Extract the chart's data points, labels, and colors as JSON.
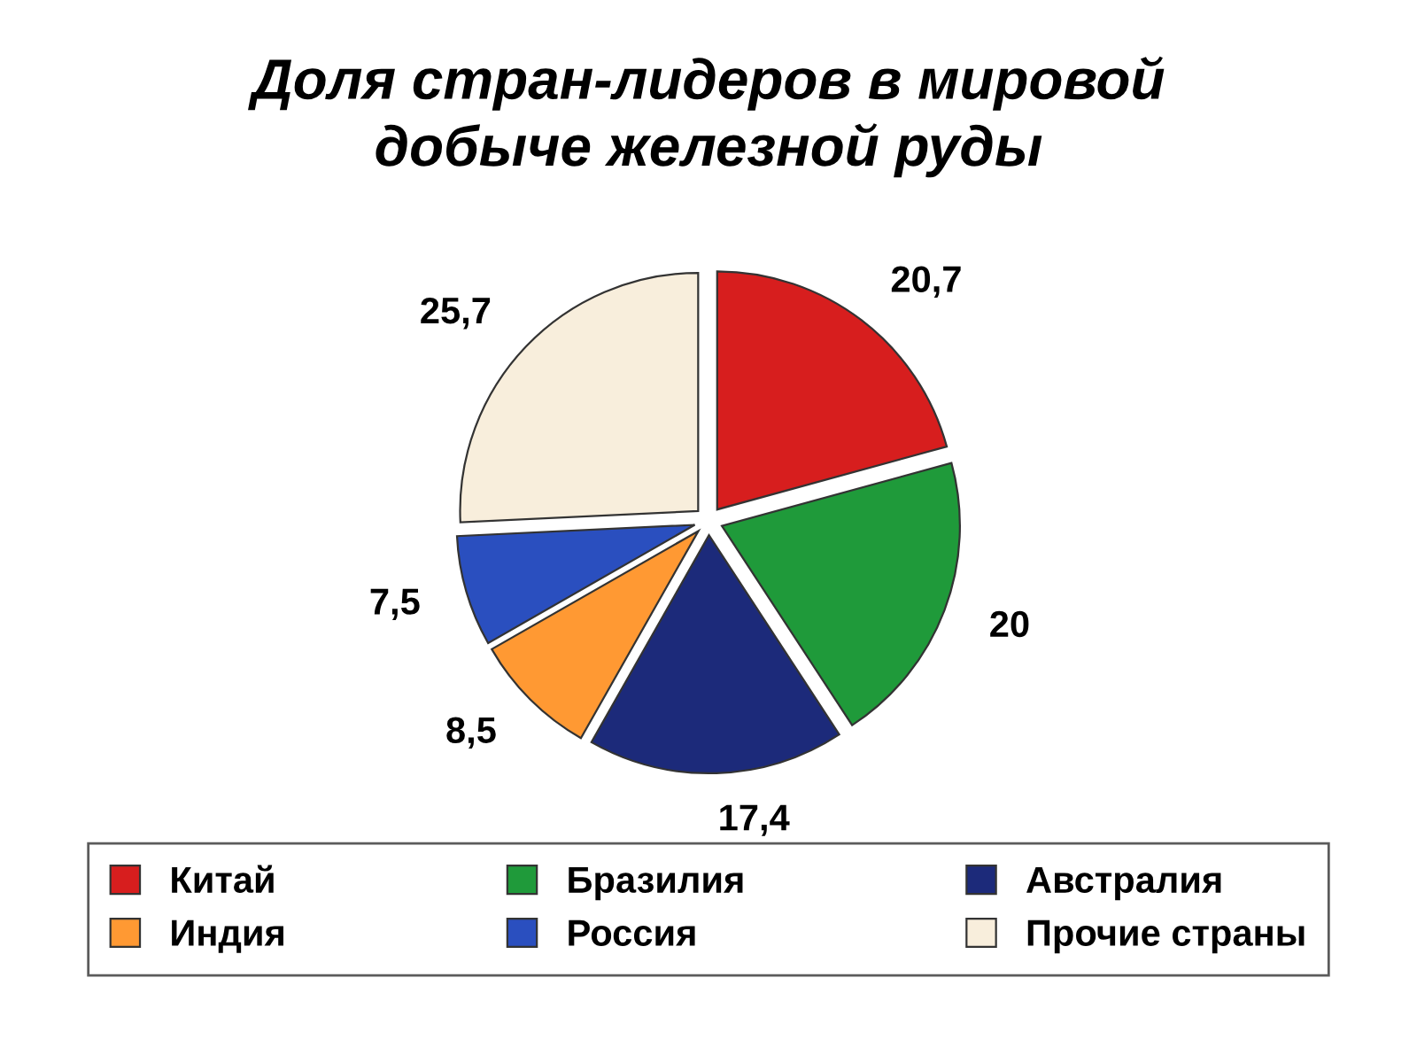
{
  "chart_data": {
    "type": "pie",
    "title": "Доля стран-лидеров в мировой\nдобыче железной руды",
    "categories": [
      "Китай",
      "Бразилия",
      "Австралия",
      "Индия",
      "Россия",
      "Прочие страны"
    ],
    "values": [
      20.7,
      20,
      17.4,
      8.5,
      7.5,
      25.7
    ],
    "colors": [
      "#d71e1e",
      "#1f9a3a",
      "#1c2a7a",
      "#ff9933",
      "#2a4fbf",
      "#f8eedc"
    ],
    "value_labels": [
      "20,7",
      "20",
      "17,4",
      "8,5",
      "7,5",
      "25,7"
    ],
    "legend": "bottom"
  }
}
